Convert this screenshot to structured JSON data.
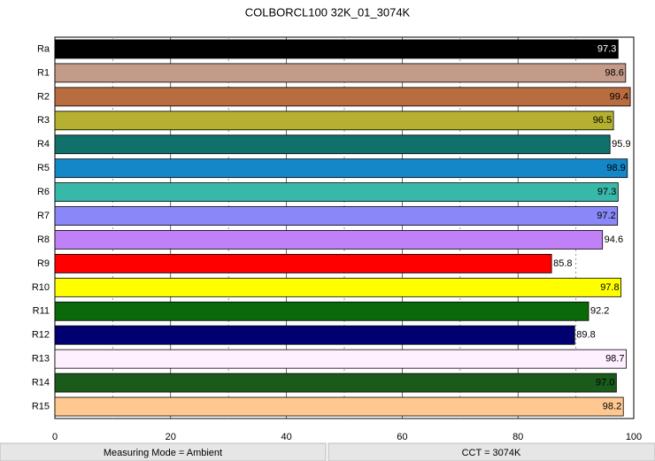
{
  "chart_data": {
    "type": "bar",
    "orientation": "horizontal",
    "title": "COLBORCL100 32K_01_3074K",
    "categories": [
      "Ra",
      "R1",
      "R2",
      "R3",
      "R4",
      "R5",
      "R6",
      "R7",
      "R8",
      "R9",
      "R10",
      "R11",
      "R12",
      "R13",
      "R14",
      "R15"
    ],
    "values": [
      97.3,
      98.6,
      99.4,
      96.5,
      95.9,
      98.9,
      97.3,
      97.2,
      94.6,
      85.8,
      97.8,
      92.2,
      89.8,
      98.7,
      97.0,
      98.2
    ],
    "value_labels": [
      "97.3",
      "98.6",
      "99.4",
      "96.5",
      "95.9",
      "98.9",
      "97.3",
      "97.2",
      "94.6",
      "85.8",
      "97.8",
      "92.2",
      "89.8",
      "98.7",
      "97.0",
      "98.2"
    ],
    "colors": [
      "#000000",
      "#c49a88",
      "#b86c40",
      "#b5b030",
      "#10706a",
      "#1487c8",
      "#38b8a8",
      "#8a88f8",
      "#c080f8",
      "#ff0000",
      "#ffff00",
      "#0a6a0a",
      "#000070",
      "#fff0ff",
      "#1a5a1a",
      "#ffc890"
    ],
    "xlim": [
      0,
      100
    ],
    "xticks": [
      0,
      20,
      40,
      60,
      80,
      100
    ],
    "minor_xticks": [
      10,
      30,
      50,
      70,
      90
    ],
    "grid": true
  },
  "status_bar": {
    "measuring_mode": "Measuring Mode = Ambient",
    "cct": "CCT = 3074K"
  }
}
